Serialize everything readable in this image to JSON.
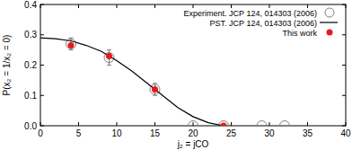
{
  "chart_data": {
    "type": "scatter",
    "x_label": "j₂ = jCO",
    "y_label": "P(x₂ = 1/x₂ = 0)",
    "xlim": [
      0,
      40
    ],
    "xticks": [
      0,
      5,
      10,
      15,
      20,
      25,
      30,
      35,
      40
    ],
    "ylim": [
      0,
      0.4
    ],
    "yticks": [
      {
        "value": 0,
        "label": "0.0"
      },
      {
        "value": 0.1,
        "label": "0.1"
      },
      {
        "value": 0.2,
        "label": "0.2"
      },
      {
        "value": 0.3,
        "label": "0.3"
      },
      {
        "value": 0.4,
        "label": "0.4"
      }
    ],
    "legend": "top-right",
    "series": [
      {
        "name": "Experiment. JCP 124, 014303 (2006)",
        "type": "scatter",
        "marker": "open-circle",
        "color": "#808080",
        "x": [
          4,
          9,
          15,
          20,
          24,
          29,
          32
        ],
        "values": [
          0.27,
          0.225,
          0.12,
          0,
          0,
          0,
          0
        ],
        "errors": [
          0.02,
          0.025,
          0.02,
          null,
          null,
          null,
          null
        ]
      },
      {
        "name": "PST. JCP 124, 014303 (2006)",
        "type": "line",
        "line_style": "solid",
        "color": "#000000",
        "x": [
          0,
          2,
          4,
          6,
          8,
          10,
          12,
          14,
          16,
          18,
          20,
          22,
          24
        ],
        "values": [
          0.29,
          0.287,
          0.28,
          0.265,
          0.245,
          0.215,
          0.18,
          0.14,
          0.1,
          0.06,
          0.03,
          0.01,
          0
        ]
      },
      {
        "name": "This work",
        "type": "scatter",
        "marker": "filled-circle",
        "color": "#e8191e",
        "x": [
          4,
          9,
          15,
          24
        ],
        "values": [
          0.265,
          0.23,
          0.12,
          0
        ]
      }
    ]
  }
}
